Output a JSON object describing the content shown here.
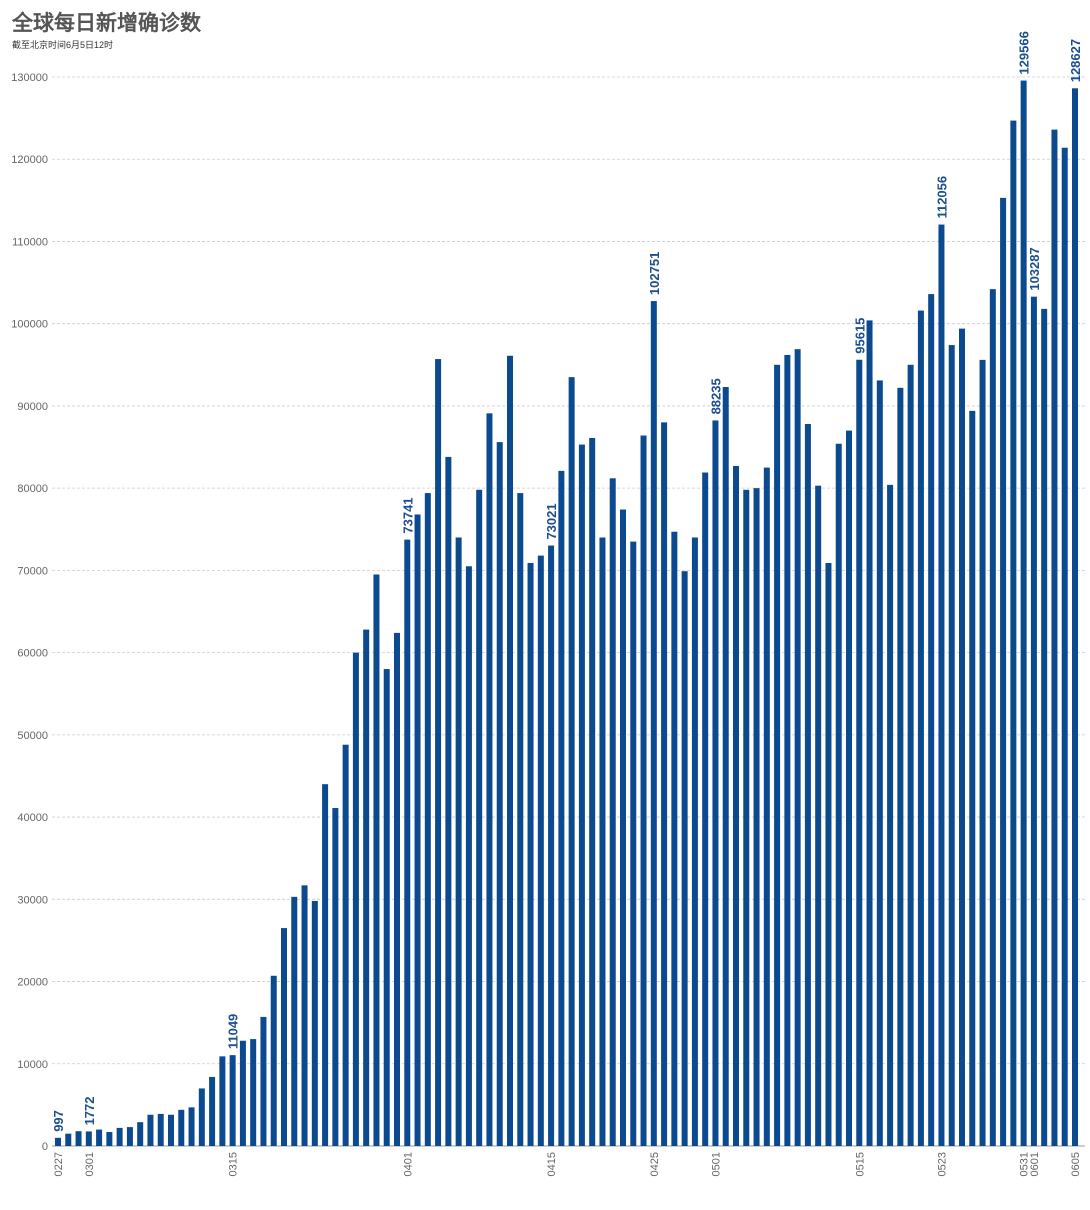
{
  "chart_data": {
    "type": "bar",
    "title": "全球每日新增确诊数",
    "subtitle": "截至北京时间6月5日12时",
    "color": "#0b4a8e",
    "grid": true,
    "ylim": [
      0,
      130000
    ],
    "yticks": [
      0,
      10000,
      20000,
      30000,
      40000,
      50000,
      60000,
      70000,
      80000,
      90000,
      100000,
      110000,
      120000,
      130000
    ],
    "categories": [
      "0227",
      null,
      null,
      "0301",
      null,
      null,
      null,
      null,
      null,
      null,
      null,
      null,
      null,
      null,
      null,
      null,
      null,
      "0315",
      null,
      null,
      null,
      null,
      null,
      null,
      null,
      null,
      null,
      null,
      null,
      null,
      null,
      null,
      null,
      null,
      "0401",
      null,
      null,
      null,
      null,
      null,
      null,
      null,
      null,
      null,
      null,
      null,
      null,
      null,
      "0415",
      null,
      null,
      null,
      null,
      null,
      null,
      null,
      null,
      null,
      "0425",
      null,
      null,
      null,
      null,
      null,
      "0501",
      null,
      null,
      null,
      null,
      null,
      null,
      null,
      null,
      null,
      null,
      null,
      null,
      null,
      "0515",
      null,
      null,
      null,
      null,
      null,
      null,
      null,
      "0523",
      null,
      null,
      null,
      null,
      null,
      null,
      null,
      "0531",
      "0601",
      null,
      null,
      null,
      "0605"
    ],
    "values": [
      997,
      1500,
      1800,
      1772,
      2000,
      1700,
      2200,
      2300,
      2900,
      3800,
      3900,
      3800,
      4400,
      4700,
      7000,
      8400,
      10900,
      11049,
      12800,
      13000,
      15700,
      20700,
      26500,
      30300,
      31700,
      29800,
      44000,
      41100,
      48800,
      60000,
      62800,
      69500,
      58000,
      62400,
      73741,
      76800,
      79400,
      95700,
      83800,
      74000,
      70500,
      79800,
      89100,
      85600,
      96100,
      79400,
      70900,
      71800,
      73021,
      82100,
      93500,
      85300,
      86100,
      74000,
      81200,
      77400,
      73500,
      86400,
      102751,
      88000,
      74700,
      69900,
      74000,
      81900,
      88235,
      92300,
      82700,
      79800,
      80000,
      82500,
      95000,
      96200,
      96900,
      87800,
      80300,
      70900,
      85400,
      87000,
      95615,
      100400,
      93100,
      80400,
      92200,
      95000,
      101600,
      103600,
      112056,
      97400,
      99400,
      89400,
      95600,
      104200,
      115300,
      124700,
      129566,
      103287,
      101800,
      123600,
      121400,
      128627
    ],
    "value_labels": [
      "997",
      null,
      null,
      "1772",
      null,
      null,
      null,
      null,
      null,
      null,
      null,
      null,
      null,
      null,
      null,
      null,
      null,
      "11049",
      null,
      null,
      null,
      null,
      null,
      null,
      null,
      null,
      null,
      null,
      null,
      null,
      null,
      null,
      null,
      null,
      "73741",
      null,
      null,
      null,
      null,
      null,
      null,
      null,
      null,
      null,
      null,
      null,
      null,
      null,
      "73021",
      null,
      null,
      null,
      null,
      null,
      null,
      null,
      null,
      null,
      "102751",
      null,
      null,
      null,
      null,
      null,
      "88235",
      null,
      null,
      null,
      null,
      null,
      null,
      null,
      null,
      null,
      null,
      null,
      null,
      null,
      "95615",
      null,
      null,
      null,
      null,
      null,
      null,
      null,
      "112056",
      null,
      null,
      null,
      null,
      null,
      null,
      null,
      "129566",
      "103287",
      null,
      null,
      null,
      "128627"
    ]
  }
}
